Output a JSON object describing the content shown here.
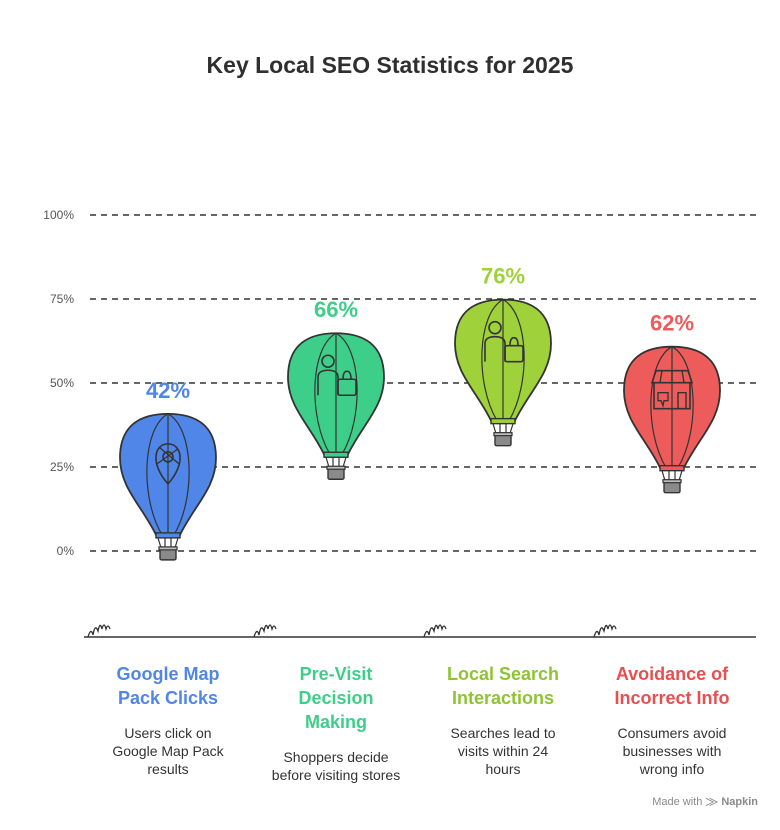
{
  "title": "Key Local SEO Statistics for 2025",
  "chart_data": {
    "type": "bar",
    "ylim": [
      0,
      100
    ],
    "yticks": [
      0,
      25,
      50,
      75,
      100
    ],
    "ytick_labels": [
      "0%",
      "25%",
      "50%",
      "75%",
      "100%"
    ],
    "grid": true,
    "categories": [
      "Google Map Pack Clicks",
      "Pre-Visit Decision Making",
      "Local Search Interactions",
      "Avoidance of Incorrect Info"
    ],
    "values": [
      42,
      66,
      76,
      62
    ],
    "value_labels": [
      "42%",
      "66%",
      "76%",
      "62%"
    ],
    "colors": [
      "#4f86e8",
      "#3dcf8a",
      "#9fd13a",
      "#ee5b5b"
    ],
    "icons": [
      "map-pin-icon",
      "shopper-icon",
      "shopper-icon",
      "store-thumbs-down-icon"
    ]
  },
  "columns": [
    {
      "title_lines": [
        "Google Map",
        "Pack Clicks"
      ],
      "desc_lines": [
        "Users click on",
        "Google Map Pack",
        "results"
      ],
      "color": "#4f86e8"
    },
    {
      "title_lines": [
        "Pre-Visit",
        "Decision",
        "Making"
      ],
      "desc_lines": [
        "Shoppers decide",
        "before visiting stores"
      ],
      "color": "#3dcf8a"
    },
    {
      "title_lines": [
        "Local Search",
        "Interactions"
      ],
      "desc_lines": [
        "Searches lead to",
        "visits within 24",
        "hours"
      ],
      "color": "#8fc431"
    },
    {
      "title_lines": [
        "Avoidance of",
        "Incorrect Info"
      ],
      "desc_lines": [
        "Consumers avoid",
        "businesses with",
        "wrong info"
      ],
      "color": "#e84f4f"
    }
  ],
  "credit": {
    "prefix": "Made with",
    "brand": "Napkin"
  }
}
